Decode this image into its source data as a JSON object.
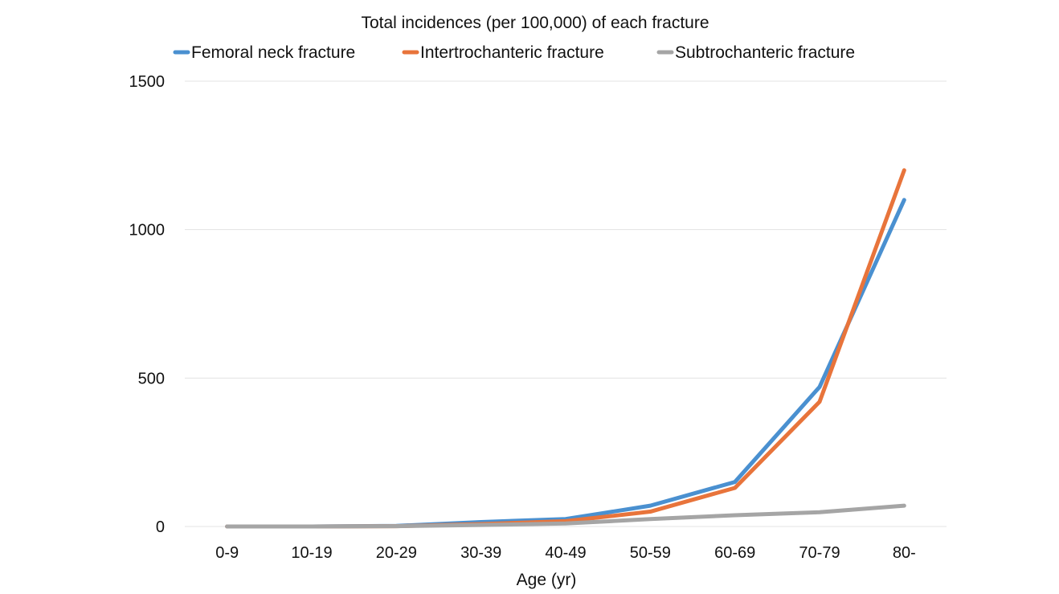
{
  "chart_data": {
    "type": "line",
    "title": "Total incidences (per 100,000) of each fracture",
    "xlabel": "Age (yr)",
    "ylabel": "",
    "categories": [
      "0-9",
      "10-19",
      "20-29",
      "30-39",
      "40-49",
      "50-59",
      "60-69",
      "70-79",
      "80-"
    ],
    "ylim": [
      0,
      1500
    ],
    "yticks": [
      "0",
      "500",
      "1000",
      "1500"
    ],
    "grid": true,
    "legend_position": "top",
    "series": [
      {
        "name": "Femoral neck fracture",
        "color": "#4a90d0",
        "values": [
          0,
          0,
          2,
          15,
          25,
          70,
          150,
          470,
          1100
        ]
      },
      {
        "name": "Intertrochanteric fracture",
        "color": "#e8743b",
        "values": [
          0,
          0,
          1,
          8,
          18,
          50,
          130,
          420,
          1200
        ]
      },
      {
        "name": "Subtrochanteric fracture",
        "color": "#a5a5a5",
        "values": [
          0,
          0,
          1,
          5,
          10,
          25,
          38,
          48,
          70
        ]
      }
    ]
  }
}
